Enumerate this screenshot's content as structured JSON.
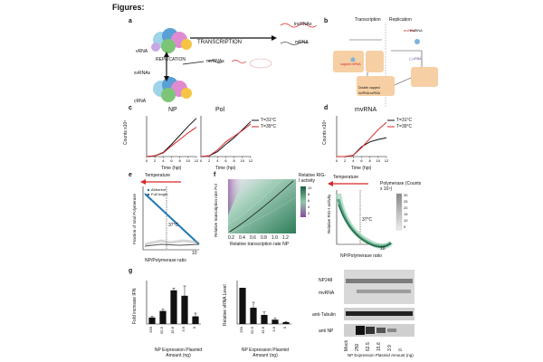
{
  "header": {
    "title": "Figures:"
  },
  "panel_labels": [
    "a",
    "b",
    "c",
    "d",
    "e",
    "f",
    "g"
  ],
  "panel_a": {
    "labels": {
      "transcription": "TRANSCRIPTION",
      "replication": "REPLICATION",
      "vrna": "vRNA",
      "crna": "cRNA",
      "lncrna": "lncRNAs",
      "mrna": "mRNA",
      "svrna": "svRNAs",
      "mvrna": "mvRNAs"
    }
  },
  "panel_b": {
    "columns": [
      "Transcription",
      "Replication"
    ],
    "box_label": "Double capped mvRNA:svRNA",
    "mvrna_label": "mvRNA"
  },
  "panel_c": {
    "chart_data": [
      {
        "type": "line",
        "title": "NP",
        "ylabel": "Counts x10⁴",
        "xlabel": "Time (hpi)",
        "x": [
          0,
          2,
          4,
          6,
          8,
          10,
          12
        ],
        "series": [
          {
            "name": "T=31°C",
            "color": "#111111",
            "values": [
              0,
              0.2,
              1,
              3,
              5.2,
              7.4,
              9.4
            ]
          },
          {
            "name": "T=39°C",
            "color": "#d62728",
            "values": [
              0,
              0.2,
              0.9,
              2.6,
              4.2,
              5.8,
              7.2
            ]
          }
        ],
        "ylim": [
          0,
          10
        ]
      },
      {
        "type": "line",
        "title": "Pol",
        "xlabel": "Time (hpi)",
        "x": [
          0,
          2,
          4,
          6,
          8,
          10,
          12
        ],
        "series": [
          {
            "name": "T=31°C",
            "color": "#111111",
            "values": [
              0,
              0.2,
              1.2,
              3,
              4.6,
              6.6,
              8.6
            ]
          },
          {
            "name": "T=39°C",
            "color": "#d62728",
            "values": [
              0,
              0.2,
              1.6,
              3.6,
              5,
              6.4,
              8
            ]
          }
        ],
        "ylim": [
          0,
          10
        ]
      }
    ],
    "x_ticks": [
      "0",
      "2",
      "4",
      "6",
      "8",
      "10",
      "12"
    ],
    "legend": [
      "T=31°C",
      "T=39°C"
    ]
  },
  "panel_d": {
    "chart_data": {
      "type": "line",
      "title": "mvRNA",
      "ylabel": "Counts x10⁴",
      "xlabel": "Time (hpi)",
      "x": [
        0,
        2,
        4,
        6,
        8,
        10,
        12
      ],
      "series": [
        {
          "name": "T=31°C",
          "color": "#111111",
          "values": [
            0,
            0,
            0.3,
            2.4,
            3.6,
            4.2,
            4.6
          ]
        },
        {
          "name": "T=39°C",
          "color": "#d62728",
          "values": [
            0,
            0,
            0.3,
            2.2,
            4.4,
            6.6,
            8.4
          ]
        }
      ],
      "ylim": [
        0,
        10
      ]
    },
    "legend": [
      "T=31°C",
      "T=39°C"
    ]
  },
  "panel_e": {
    "temperature_label": "Temperature",
    "legend": [
      "Abberent",
      "Full length"
    ],
    "ylabel": "Fraction of total Polymerase",
    "xlabel": "NP/Polymerase ratio",
    "vline_label": "37°C",
    "x_tick": "10"
  },
  "panel_f": {
    "colorbar_title": "Relative RIG-I activity",
    "colorbar_ticks": [
      "10",
      "8",
      "6",
      "4",
      "2"
    ],
    "ylabel": "Relative transcription rate Pol",
    "xlabel": "Relative transcription rate NP",
    "x_ticks": [
      "0.2",
      "0.4",
      "0.6",
      "0.8",
      "1.0",
      "1.2"
    ],
    "y_ticks": [
      "1.2",
      "1.0",
      "0.8",
      "0.6",
      "0.4",
      "0.2"
    ],
    "right": {
      "temperature_label": "Temperature",
      "colorbar_title": "Polymerase (Counts x 10⁴)",
      "colorbar_ticks": [
        "30",
        "25",
        "20",
        "15",
        "10",
        "5"
      ],
      "ylabel": "Relative RIG-I activity",
      "xlabel": "NP/Polymerase ratio",
      "vline_label": "37°C",
      "x_tick": "10"
    },
    "colors": {
      "green": "#2e7d5a",
      "purple": "#8a4a9e"
    }
  },
  "panel_g": {
    "chart_data": [
      {
        "type": "bar",
        "ylabel": "Fold increase IFN",
        "xlabel": "NP Expression Plasmid Amount (ng)",
        "categories": [
          "250",
          "62.5",
          "15.6",
          "3.9",
          "0"
        ],
        "values": [
          0.6,
          1.2,
          3.1,
          2.6,
          0.7
        ],
        "errors": [
          0.1,
          0.15,
          0.2,
          0.9,
          0.3
        ],
        "ylim": [
          0,
          4
        ]
      },
      {
        "type": "bar",
        "ylabel": "Relative vRNA Level",
        "xlabel": "NP Expression Plasmid Amount (ng)",
        "categories": [
          "250",
          "62.5",
          "15.6",
          "3.9",
          "0"
        ],
        "values": [
          1.0,
          0.45,
          0.25,
          0.12,
          0.05
        ],
        "errors": [
          0.0,
          0.15,
          0.08,
          0.04,
          0.02
        ],
        "ylim": [
          0,
          1.2
        ]
      }
    ],
    "blot": {
      "row_labels": [
        "NP248",
        "mvRNA",
        "anti-Tubulin",
        "anti NP"
      ],
      "lanes": [
        "Mock",
        "250",
        "62.5",
        "15.6",
        "3.9",
        "0"
      ],
      "xlabel": "NP Expression Plasmid Amount (ng)"
    }
  }
}
